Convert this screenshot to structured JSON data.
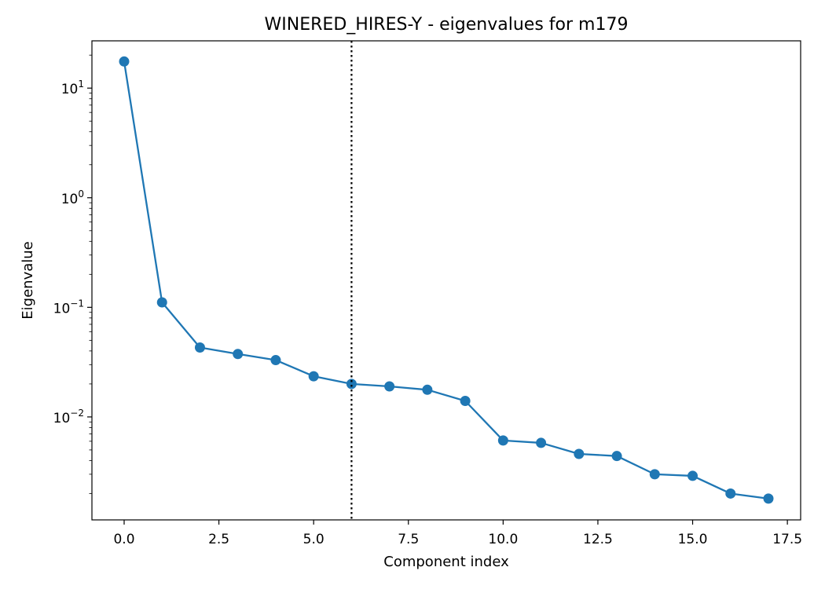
{
  "chart_data": {
    "type": "line",
    "title": "WINERED_HIRES-Y - eigenvalues for m179",
    "xlabel": "Component index",
    "ylabel": "Eigenvalue",
    "y_scale": "log",
    "xlim": [
      -0.85,
      17.85
    ],
    "ylim": [
      0.00115,
      27
    ],
    "x_ticks": [
      0.0,
      2.5,
      5.0,
      7.5,
      10.0,
      12.5,
      15.0,
      17.5
    ],
    "x_tick_labels": [
      "0.0",
      "2.5",
      "5.0",
      "7.5",
      "10.0",
      "12.5",
      "15.0",
      "17.5"
    ],
    "y_ticks": [
      {
        "value": 0.01,
        "base": "10",
        "exp": "−2"
      },
      {
        "value": 0.1,
        "base": "10",
        "exp": "−1"
      },
      {
        "value": 1,
        "base": "10",
        "exp": "0"
      },
      {
        "value": 10,
        "base": "10",
        "exp": "1"
      }
    ],
    "grid": false,
    "series": [
      {
        "color": "#1f77b4",
        "marker": "circle",
        "x": [
          0,
          1,
          2,
          3,
          4,
          5,
          6,
          7,
          8,
          9,
          10,
          11,
          12,
          13,
          14,
          15,
          16,
          17
        ],
        "y": [
          17.5,
          0.111,
          0.043,
          0.0375,
          0.033,
          0.0235,
          0.02,
          0.019,
          0.0177,
          0.014,
          0.0061,
          0.0058,
          0.0046,
          0.0044,
          0.003,
          0.0029,
          0.002,
          0.0018
        ]
      }
    ],
    "vlines": [
      {
        "x": 6,
        "color": "#000000",
        "style": "dotted"
      }
    ]
  }
}
